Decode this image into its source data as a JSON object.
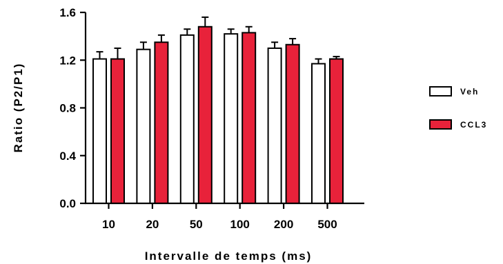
{
  "chart_data": {
    "type": "bar",
    "title": "",
    "xlabel": "Intervalle de temps (ms)",
    "ylabel": "Ratio (P2/P1)",
    "ylim": [
      0,
      1.6
    ],
    "yticks": [
      "0.0",
      "0.4",
      "0.8",
      "1.2",
      "1.6"
    ],
    "categories": [
      "10",
      "20",
      "50",
      "100",
      "200",
      "500"
    ],
    "series": [
      {
        "name": "Veh",
        "values": [
          1.21,
          1.29,
          1.41,
          1.42,
          1.3,
          1.17
        ],
        "errors": [
          0.06,
          0.06,
          0.05,
          0.04,
          0.05,
          0.04
        ],
        "color": "#ffffff"
      },
      {
        "name": "CCL3",
        "values": [
          1.21,
          1.35,
          1.48,
          1.43,
          1.33,
          1.21
        ],
        "errors": [
          0.09,
          0.06,
          0.08,
          0.05,
          0.05,
          0.02
        ],
        "color": "#e8223a"
      }
    ],
    "error_bars": "upper",
    "grid": false,
    "legend_position": "right"
  }
}
